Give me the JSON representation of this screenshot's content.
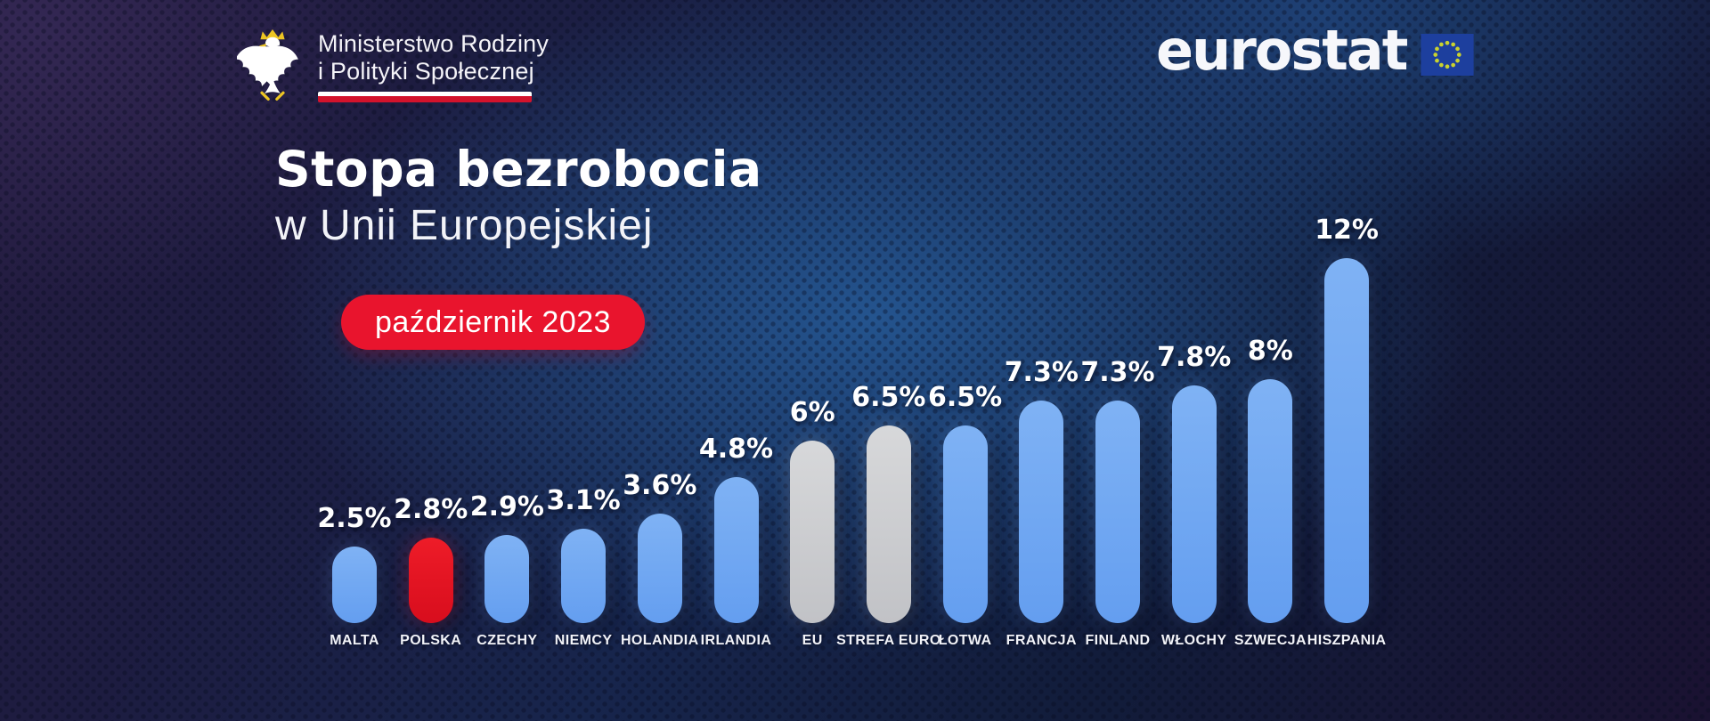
{
  "header": {
    "ministry_line1": "Ministerstwo Rodziny",
    "ministry_line2": "i Polityki Społecznej",
    "eurostat_wordmark": "eurostat"
  },
  "title": {
    "line1": "Stopa bezrobocia",
    "line2": "w Unii Europejskiej"
  },
  "date_badge": {
    "label": "październik 2023"
  },
  "colors": {
    "bar_blue": "#6ea7f0",
    "bar_red": "#e4121f",
    "bar_gray": "#c9cacd",
    "badge_red": "#e9142d",
    "stripe_white": "#ffffff",
    "stripe_red": "#d3132c",
    "eu_flag_blue": "#1d3f9e",
    "eu_star_yellow": "#c9d22f",
    "background_navy": "#17254c"
  },
  "chart_data": {
    "type": "bar",
    "title": "Stopa bezrobocia w Unii Europejskiej",
    "subtitle": "październik 2023",
    "source": "eurostat",
    "unit": "%",
    "categories": [
      "MALTA",
      "POLSKA",
      "CZECHY",
      "NIEMCY",
      "HOLANDIA",
      "IRLANDIA",
      "EU",
      "STREFA EURO",
      "ŁOTWA",
      "FRANCJA",
      "FINLAND",
      "WŁOCHY",
      "SZWECJA",
      "HISZPANIA"
    ],
    "values": [
      2.5,
      2.8,
      2.9,
      3.1,
      3.6,
      4.8,
      6,
      6.5,
      6.5,
      7.3,
      7.3,
      7.8,
      8,
      12
    ],
    "value_labels": [
      "2.5%",
      "2.8%",
      "2.9%",
      "3.1%",
      "3.6%",
      "4.8%",
      "6%",
      "6.5%",
      "6.5%",
      "7.3%",
      "7.3%",
      "7.8%",
      "8%",
      "12%"
    ],
    "bar_colors": [
      "blue",
      "red",
      "blue",
      "blue",
      "blue",
      "blue",
      "gray",
      "gray",
      "blue",
      "blue",
      "blue",
      "blue",
      "blue",
      "blue"
    ],
    "highlight_category": "POLSKA",
    "reference_categories": [
      "EU",
      "STREFA EURO"
    ],
    "ylim": [
      0,
      12
    ],
    "grid": false,
    "legend": false,
    "axis_labels_visible": false
  }
}
